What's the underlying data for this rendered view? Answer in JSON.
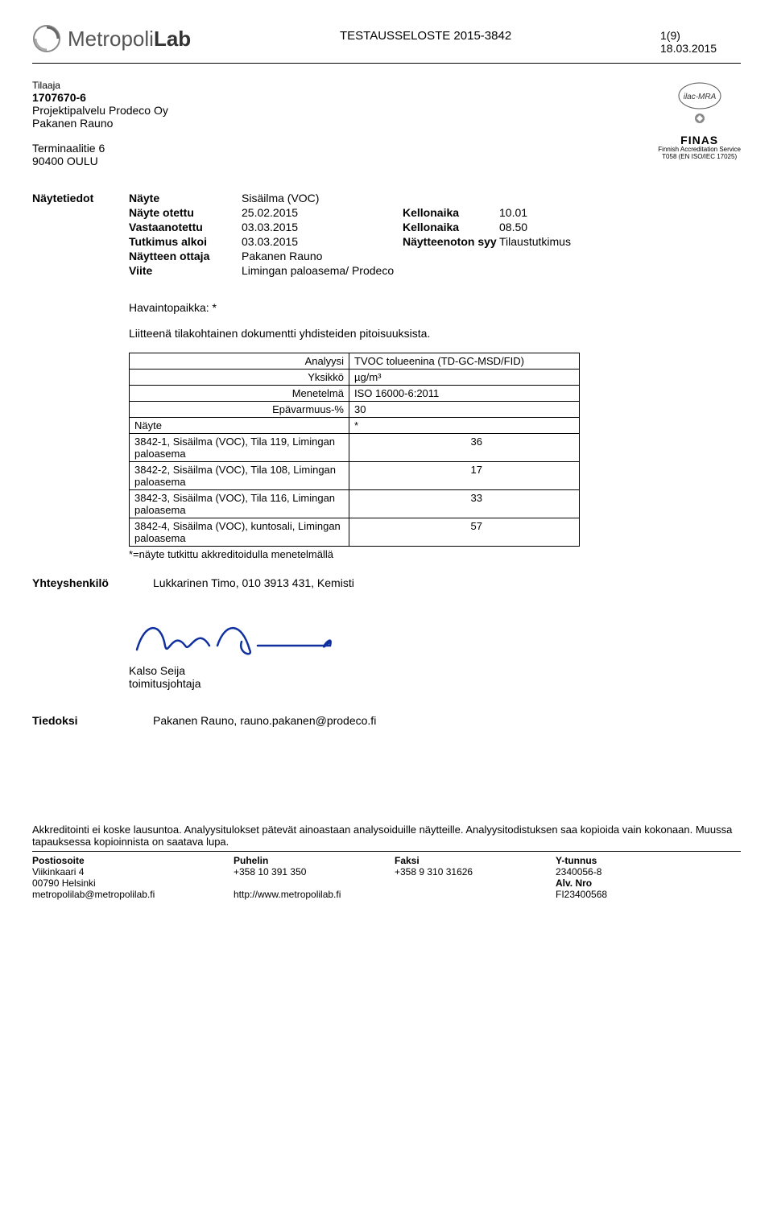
{
  "header": {
    "logo_main": "Metropoli",
    "logo_bold": "Lab",
    "title": "TESTAUSSELOSTE 2015-3842",
    "page": "1(9)",
    "date": "18.03.2015"
  },
  "client": {
    "label": "Tilaaja",
    "id": "1707670-6",
    "name": "Projektipalvelu Prodeco Oy",
    "person": "Pakanen Rauno",
    "addr1": "Terminaalitie 6",
    "addr2": "90400 OULU"
  },
  "accred": {
    "ilac": "ilac-MRA",
    "finas": "FINAS",
    "sub1": "Finnish Accreditation Service",
    "sub2": "T058 (EN ISO/IEC 17025)"
  },
  "details": {
    "section": "Näytetiedot",
    "rows": [
      {
        "k": "Näyte",
        "v1": "Sisäilma (VOC)",
        "k2": "",
        "v2": ""
      },
      {
        "k": "Näyte otettu",
        "v1": "25.02.2015",
        "k2": "Kellonaika",
        "v2": "10.01"
      },
      {
        "k": "Vastaanotettu",
        "v1": "03.03.2015",
        "k2": "Kellonaika",
        "v2": "08.50"
      },
      {
        "k": "Tutkimus alkoi",
        "v1": "03.03.2015",
        "k2": "Näytteenoton syy",
        "v2": "Tilaustutkimus"
      },
      {
        "k": "Näytteen ottaja",
        "v1": "Pakanen Rauno",
        "k2": "",
        "v2": ""
      },
      {
        "k": "Viite",
        "v1": "Limingan paloasema/ Prodeco",
        "k2": "",
        "v2": ""
      }
    ]
  },
  "observation": {
    "title": "Havaintopaikka: *",
    "attachment": "Liitteenä tilakohtainen dokumentti yhdisteiden pitoisuuksista."
  },
  "table": {
    "meta": [
      {
        "l": "Analyysi",
        "r": "TVOC tolueenina (TD-GC-MSD/FID)"
      },
      {
        "l": "Yksikkö",
        "r": "µg/m³"
      },
      {
        "l": "Menetelmä",
        "r": "ISO 16000-6:2011"
      },
      {
        "l": "Epävarmuus-%",
        "r": "30"
      }
    ],
    "sample_header_l": "Näyte",
    "sample_header_r": "*",
    "rows": [
      {
        "name": "3842-1, Sisäilma (VOC), Tila 119, Limingan paloasema",
        "val": "36"
      },
      {
        "name": "3842-2, Sisäilma (VOC), Tila 108, Limingan paloasema",
        "val": "17"
      },
      {
        "name": "3842-3, Sisäilma (VOC), Tila 116, Limingan paloasema",
        "val": "33"
      },
      {
        "name": "3842-4, Sisäilma (VOC), kuntosali, Limingan paloasema",
        "val": "57"
      }
    ],
    "footnote": "*=näyte tutkittu akkreditoidulla menetelmällä"
  },
  "contact": {
    "label": "Yhteyshenkilö",
    "value": "Lukkarinen Timo, 010 3913 431, Kemisti"
  },
  "signature": {
    "name": "Kalso Seija",
    "title": "toimitusjohtaja"
  },
  "cc": {
    "label": "Tiedoksi",
    "value": "Pakanen Rauno, rauno.pakanen@prodeco.fi"
  },
  "footer": {
    "note": "Akkreditointi ei koske lausuntoa. Analyysitulokset pätevät ainoastaan analysoiduille näytteille. Analyysitodistuksen saa kopioida vain kokonaan. Muussa tapauksessa kopioinnista on saatava lupa.",
    "cols": {
      "c1h": "Postiosoite",
      "c1a": "Viikinkaari 4",
      "c1b": "00790 Helsinki",
      "c1c": "metropolilab@metropolilab.fi",
      "c2h": "Puhelin",
      "c2a": "+358 10 391 350",
      "c2b": "",
      "c2c": "http://www.metropolilab.fi",
      "c3h": "Faksi",
      "c3a": "+358 9 310 31626",
      "c3b": "",
      "c3c": "",
      "c4h": "Y-tunnus",
      "c4a": "2340056-8",
      "c4b": "Alv. Nro",
      "c4c": "FI23400568"
    }
  }
}
